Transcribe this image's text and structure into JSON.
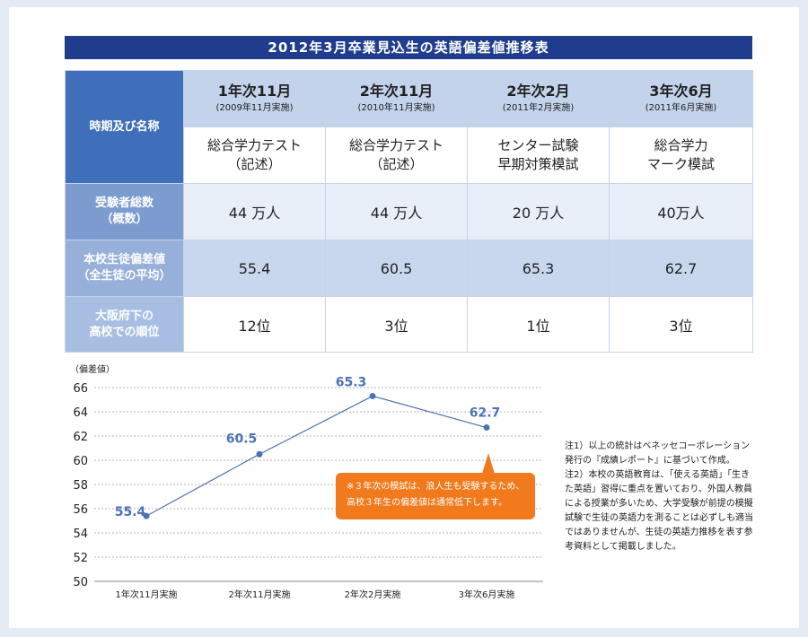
{
  "title": "2012年3月卒業見込生の英語偏差値推移表",
  "table": {
    "corner_label": "時期及び名称",
    "columns": [
      {
        "period": "1年次11月",
        "date": "(2009年11月実施)",
        "exam": "総合学力テスト\n（記述）"
      },
      {
        "period": "2年次11月",
        "date": "(2010年11月実施)",
        "exam": "総合学力テスト\n（記述）"
      },
      {
        "period": "2年次2月",
        "date": "(2011年2月実施)",
        "exam": "センター試験\n早期対策模試"
      },
      {
        "period": "3年次6月",
        "date": "(2011年6月実施)",
        "exam": "総合学力\nマーク模試"
      }
    ],
    "rows": [
      {
        "label1": "受験者総数",
        "label2": "（概数）",
        "values": [
          "44 万人",
          "44 万人",
          "20 万人",
          "40万人"
        ]
      },
      {
        "label1": "本校生徒偏差値",
        "label2": "（全生徒の平均）",
        "values": [
          "55.4",
          "60.5",
          "65.3",
          "62.7"
        ]
      },
      {
        "label1": "大阪府下の",
        "label2": "高校での順位",
        "values": [
          "12位",
          "3位",
          "1位",
          "3位"
        ]
      }
    ]
  },
  "chart_data": {
    "type": "line",
    "ylabel": "（偏差値）",
    "categories": [
      "1年次11月実施",
      "2年次11月実施",
      "2年次2月実施",
      "3年次6月実施"
    ],
    "values": [
      55.4,
      60.5,
      65.3,
      62.7
    ],
    "data_labels": [
      "55.4",
      "60.5",
      "65.3",
      "62.7"
    ],
    "ylim": [
      50,
      66
    ],
    "yticks": [
      50,
      52,
      54,
      56,
      58,
      60,
      62,
      64,
      66
    ],
    "grid": true,
    "line_color": "#4a73b5",
    "label_color": "#4a73b5"
  },
  "callout": {
    "line1": "※３年次の模試は、浪人生も受験するため、",
    "line2": "高校３年生の偏差値は通常低下します。"
  },
  "notes": {
    "note1": "注1）以上の統計はベネッセコーポレーション発行の『成績レポート』に基づいて作成。",
    "note2": "注2）本校の英語教育は、「使える英語」「生きた英語」習得に重点を置いており、外国人教員による授業が多いため、大学受験が前提の模擬試験で生徒の英語力を測ることは必ずしも適当ではありませんが、生徒の英語力推移を表す参考資料として掲載しました。"
  },
  "colors": {
    "title_bg": "#1f3d8c",
    "callout_bg": "#f07a1c"
  }
}
